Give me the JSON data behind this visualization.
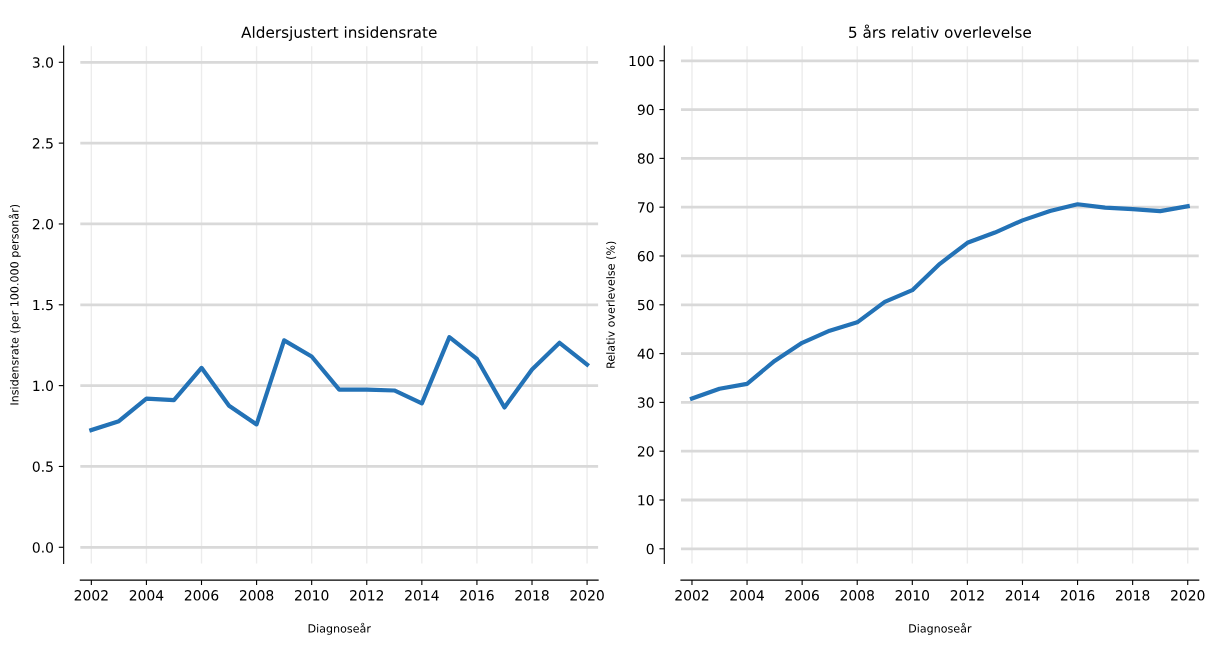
{
  "chart_data": [
    {
      "type": "line",
      "title": "Aldersjustert insidensrate",
      "xlabel": "Diagnoseår",
      "ylabel": "Insidensrate (per 100.000 personår)",
      "x": [
        2002,
        2003,
        2004,
        2005,
        2006,
        2007,
        2008,
        2009,
        2010,
        2011,
        2012,
        2013,
        2014,
        2015,
        2016,
        2017,
        2018,
        2019,
        2020
      ],
      "series": [
        {
          "color": "#2372b6",
          "values": [
            0.725,
            0.78,
            0.92,
            0.91,
            1.11,
            0.875,
            0.76,
            1.28,
            1.18,
            0.975,
            0.975,
            0.97,
            0.89,
            1.3,
            1.165,
            0.865,
            1.1,
            1.265,
            1.13
          ]
        }
      ],
      "xlim": [
        2001.6,
        2020.4
      ],
      "xticks": [
        2002,
        2004,
        2006,
        2008,
        2010,
        2012,
        2014,
        2016,
        2018,
        2020
      ],
      "ylim": [
        -0.1,
        3.1
      ],
      "yticks": [
        {
          "value": 0,
          "label": "0.0"
        },
        {
          "value": 0.5,
          "label": "0.5"
        },
        {
          "value": 1,
          "label": "1.0"
        },
        {
          "value": 1.5,
          "label": "1.5"
        },
        {
          "value": 2,
          "label": "2.0"
        },
        {
          "value": 2.5,
          "label": "2.5"
        },
        {
          "value": 3,
          "label": "3.0"
        }
      ],
      "grid": true,
      "line_style": "solid"
    },
    {
      "type": "line",
      "title": "5 års relativ overlevelse",
      "xlabel": "Diagnoseår",
      "ylabel": "Relativ overlevelse (%)",
      "x": [
        2002,
        2003,
        2004,
        2005,
        2006,
        2007,
        2008,
        2009,
        2010,
        2011,
        2012,
        2013,
        2014,
        2015,
        2016,
        2017,
        2018,
        2019,
        2020
      ],
      "series": [
        {
          "color": "#2372b6",
          "values": [
            30.8,
            32.8,
            33.8,
            38.5,
            42.2,
            44.7,
            46.4,
            50.6,
            53.0,
            58.4,
            62.7,
            64.8,
            67.3,
            69.2,
            70.6,
            69.9,
            69.6,
            69.2,
            70.2
          ]
        }
      ],
      "xlim": [
        2001.6,
        2020.4
      ],
      "xticks": [
        2002,
        2004,
        2006,
        2008,
        2010,
        2012,
        2014,
        2016,
        2018,
        2020
      ],
      "ylim": [
        -3,
        103
      ],
      "yticks": [
        0,
        10,
        20,
        30,
        40,
        50,
        60,
        70,
        80,
        90,
        100
      ],
      "grid": true,
      "line_style": "solid"
    }
  ]
}
